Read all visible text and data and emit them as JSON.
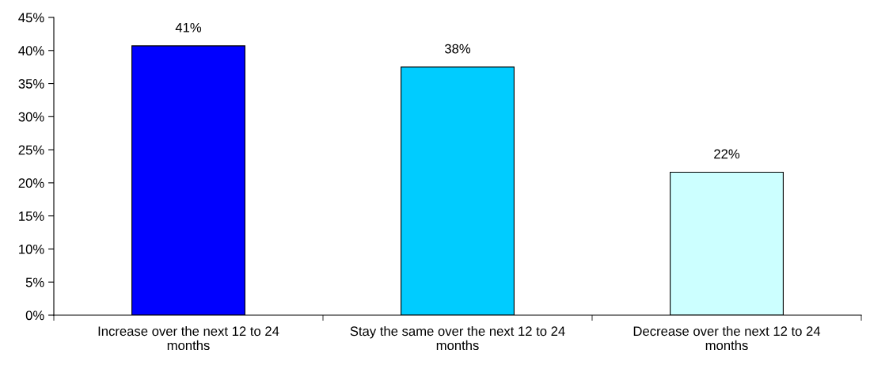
{
  "chart_data": {
    "type": "bar",
    "categories": [
      "Increase over the next 12 to 24\nmonths",
      "Stay the same over the next 12 to 24\nmonths",
      "Decrease over the next 12 to 24\nmonths"
    ],
    "values": [
      40.7,
      37.5,
      21.6
    ],
    "colors": [
      "#0000ff",
      "#00ccff",
      "#ccffff"
    ],
    "value_labels": [
      "41%",
      "38%",
      "22%"
    ],
    "ylim": [
      0,
      45
    ],
    "yticks": [
      {
        "value": 0,
        "label": "0%"
      },
      {
        "value": 5,
        "label": "5%"
      },
      {
        "value": 10,
        "label": "10%"
      },
      {
        "value": 15,
        "label": "15%"
      },
      {
        "value": 20,
        "label": "20%"
      },
      {
        "value": 25,
        "label": "25%"
      },
      {
        "value": 30,
        "label": "30%"
      },
      {
        "value": 35,
        "label": "35%"
      },
      {
        "value": 40,
        "label": "40%"
      },
      {
        "value": 45,
        "label": "45%"
      }
    ],
    "grid": false
  }
}
